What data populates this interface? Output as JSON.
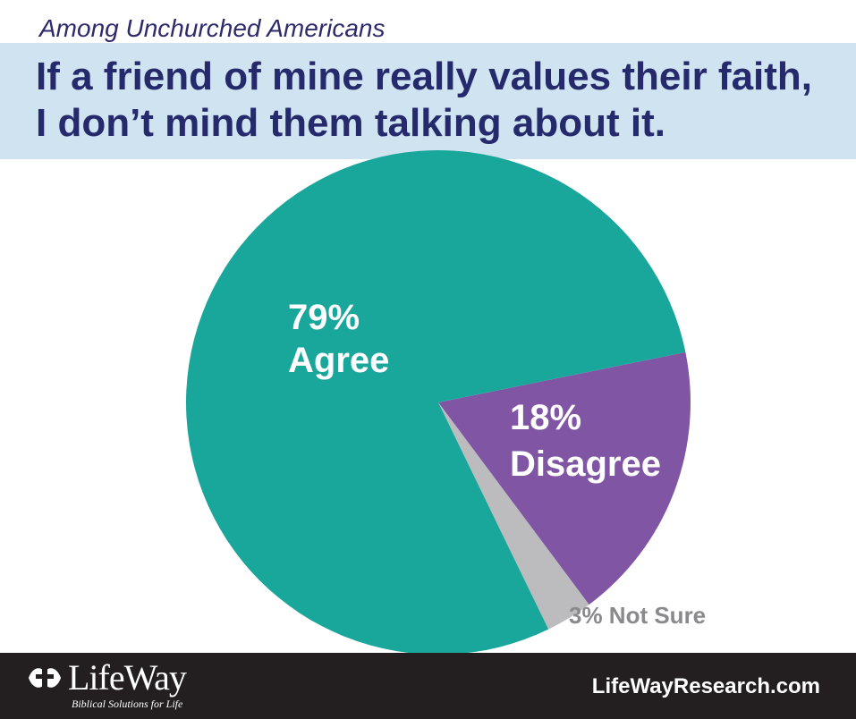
{
  "header": {
    "subtitle": "Among Unchurched Americans",
    "title_line1": "If a friend of mine really values their faith,",
    "title_line2": "I don’t mind them talking about it."
  },
  "chart_data": {
    "type": "pie",
    "title": "If a friend of mine really values their faith, I don’t mind them talking about it.",
    "subtitle": "Among Unchurched Americans",
    "slices": [
      {
        "pct": "79%",
        "label": "Agree",
        "value": 79,
        "color": "#19a69b"
      },
      {
        "pct": "18%",
        "label": "Disagree",
        "value": 18,
        "color": "#7f55a4"
      },
      {
        "pct": "3%",
        "label": "Not Sure",
        "value": 3,
        "color": "#bcbcbe"
      }
    ]
  },
  "footer": {
    "brand": "LifeWay",
    "tagline": "Biblical Solutions for Life",
    "website": "LifeWayResearch.com"
  },
  "colors": {
    "banner": "#cfe3f1",
    "title": "#242a6b",
    "footer": "#231f20"
  }
}
